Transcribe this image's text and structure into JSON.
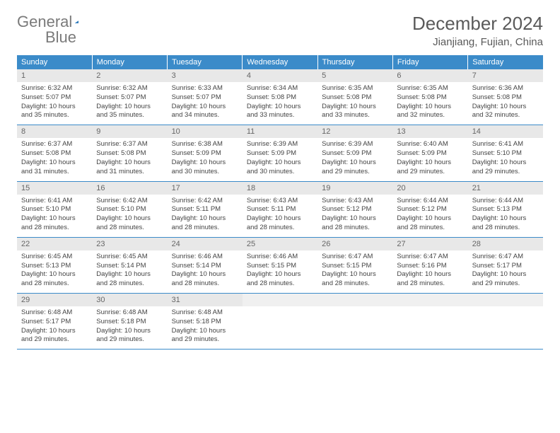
{
  "logo": {
    "text1": "General",
    "text2": "Blue"
  },
  "title": "December 2024",
  "location": "Jianjiang, Fujian, China",
  "colors": {
    "header_bg": "#3b8bc9",
    "header_fg": "#ffffff",
    "daynum_bg": "#e8e8e8",
    "text": "#444444",
    "logo_gray": "#7a7a7a",
    "logo_blue": "#1f6fb2"
  },
  "dow": [
    "Sunday",
    "Monday",
    "Tuesday",
    "Wednesday",
    "Thursday",
    "Friday",
    "Saturday"
  ],
  "labels": {
    "sunrise": "Sunrise:",
    "sunset": "Sunset:",
    "daylight": "Daylight:"
  },
  "days": [
    {
      "n": 1,
      "r": "6:32 AM",
      "s": "5:07 PM",
      "d": "10 hours and 35 minutes."
    },
    {
      "n": 2,
      "r": "6:32 AM",
      "s": "5:07 PM",
      "d": "10 hours and 35 minutes."
    },
    {
      "n": 3,
      "r": "6:33 AM",
      "s": "5:07 PM",
      "d": "10 hours and 34 minutes."
    },
    {
      "n": 4,
      "r": "6:34 AM",
      "s": "5:08 PM",
      "d": "10 hours and 33 minutes."
    },
    {
      "n": 5,
      "r": "6:35 AM",
      "s": "5:08 PM",
      "d": "10 hours and 33 minutes."
    },
    {
      "n": 6,
      "r": "6:35 AM",
      "s": "5:08 PM",
      "d": "10 hours and 32 minutes."
    },
    {
      "n": 7,
      "r": "6:36 AM",
      "s": "5:08 PM",
      "d": "10 hours and 32 minutes."
    },
    {
      "n": 8,
      "r": "6:37 AM",
      "s": "5:08 PM",
      "d": "10 hours and 31 minutes."
    },
    {
      "n": 9,
      "r": "6:37 AM",
      "s": "5:08 PM",
      "d": "10 hours and 31 minutes."
    },
    {
      "n": 10,
      "r": "6:38 AM",
      "s": "5:09 PM",
      "d": "10 hours and 30 minutes."
    },
    {
      "n": 11,
      "r": "6:39 AM",
      "s": "5:09 PM",
      "d": "10 hours and 30 minutes."
    },
    {
      "n": 12,
      "r": "6:39 AM",
      "s": "5:09 PM",
      "d": "10 hours and 29 minutes."
    },
    {
      "n": 13,
      "r": "6:40 AM",
      "s": "5:09 PM",
      "d": "10 hours and 29 minutes."
    },
    {
      "n": 14,
      "r": "6:41 AM",
      "s": "5:10 PM",
      "d": "10 hours and 29 minutes."
    },
    {
      "n": 15,
      "r": "6:41 AM",
      "s": "5:10 PM",
      "d": "10 hours and 28 minutes."
    },
    {
      "n": 16,
      "r": "6:42 AM",
      "s": "5:10 PM",
      "d": "10 hours and 28 minutes."
    },
    {
      "n": 17,
      "r": "6:42 AM",
      "s": "5:11 PM",
      "d": "10 hours and 28 minutes."
    },
    {
      "n": 18,
      "r": "6:43 AM",
      "s": "5:11 PM",
      "d": "10 hours and 28 minutes."
    },
    {
      "n": 19,
      "r": "6:43 AM",
      "s": "5:12 PM",
      "d": "10 hours and 28 minutes."
    },
    {
      "n": 20,
      "r": "6:44 AM",
      "s": "5:12 PM",
      "d": "10 hours and 28 minutes."
    },
    {
      "n": 21,
      "r": "6:44 AM",
      "s": "5:13 PM",
      "d": "10 hours and 28 minutes."
    },
    {
      "n": 22,
      "r": "6:45 AM",
      "s": "5:13 PM",
      "d": "10 hours and 28 minutes."
    },
    {
      "n": 23,
      "r": "6:45 AM",
      "s": "5:14 PM",
      "d": "10 hours and 28 minutes."
    },
    {
      "n": 24,
      "r": "6:46 AM",
      "s": "5:14 PM",
      "d": "10 hours and 28 minutes."
    },
    {
      "n": 25,
      "r": "6:46 AM",
      "s": "5:15 PM",
      "d": "10 hours and 28 minutes."
    },
    {
      "n": 26,
      "r": "6:47 AM",
      "s": "5:15 PM",
      "d": "10 hours and 28 minutes."
    },
    {
      "n": 27,
      "r": "6:47 AM",
      "s": "5:16 PM",
      "d": "10 hours and 28 minutes."
    },
    {
      "n": 28,
      "r": "6:47 AM",
      "s": "5:17 PM",
      "d": "10 hours and 29 minutes."
    },
    {
      "n": 29,
      "r": "6:48 AM",
      "s": "5:17 PM",
      "d": "10 hours and 29 minutes."
    },
    {
      "n": 30,
      "r": "6:48 AM",
      "s": "5:18 PM",
      "d": "10 hours and 29 minutes."
    },
    {
      "n": 31,
      "r": "6:48 AM",
      "s": "5:18 PM",
      "d": "10 hours and 29 minutes."
    }
  ],
  "start_dow": 0,
  "trailing_blanks": 4
}
